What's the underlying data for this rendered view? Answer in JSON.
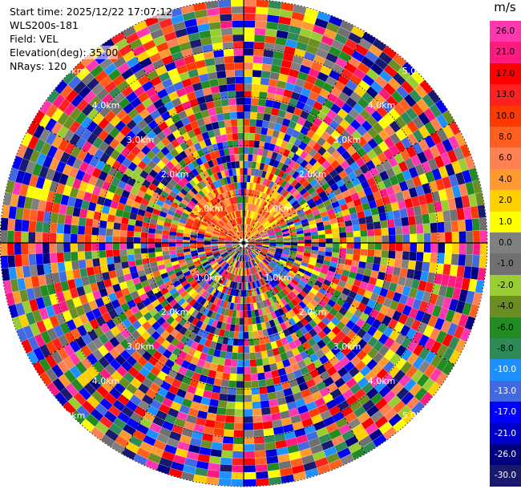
{
  "info": {
    "start_time": "Start time: 2025/12/22 17:07:12",
    "instrument": "WLS200s-181",
    "field": "Field: VEL",
    "elevation": "Elevation(deg): 35.00",
    "nrays": "NRays: 120"
  },
  "colorbar": {
    "unit": "m/s",
    "ticks": [
      "26.0",
      "21.0",
      "17.0",
      "13.0",
      "10.0",
      "8.0",
      "6.0",
      "4.0",
      "2.0",
      "1.0",
      "0.0",
      "-1.0",
      "-2.0",
      "-4.0",
      "-6.0",
      "-8.0",
      "-10.0",
      "-13.0",
      "-17.0",
      "-21.0",
      "-26.0",
      "-30.0"
    ],
    "colors": [
      "#ff38b0",
      "#ff1a80",
      "#ff0000",
      "#ff2020",
      "#ff3a00",
      "#ff6020",
      "#ff8050",
      "#ff9a30",
      "#ffd000",
      "#ffff00",
      "#808080",
      "#707070",
      "#9acd32",
      "#6b8e23",
      "#228b22",
      "#2e8b57",
      "#1e90ff",
      "#4169e1",
      "#0000ff",
      "#0000cd",
      "#000080",
      "#191970"
    ]
  },
  "chart_data": {
    "type": "heatmap",
    "projection": "polar-ppi",
    "field": "VEL",
    "units": "m/s",
    "elevation_deg": 35.0,
    "n_rays": 120,
    "range_ring_labels": [
      "1.0km",
      "2.0km",
      "3.0km",
      "4.0km",
      "5.0km"
    ],
    "color_limits": [
      -30.0,
      26.0
    ]
  }
}
